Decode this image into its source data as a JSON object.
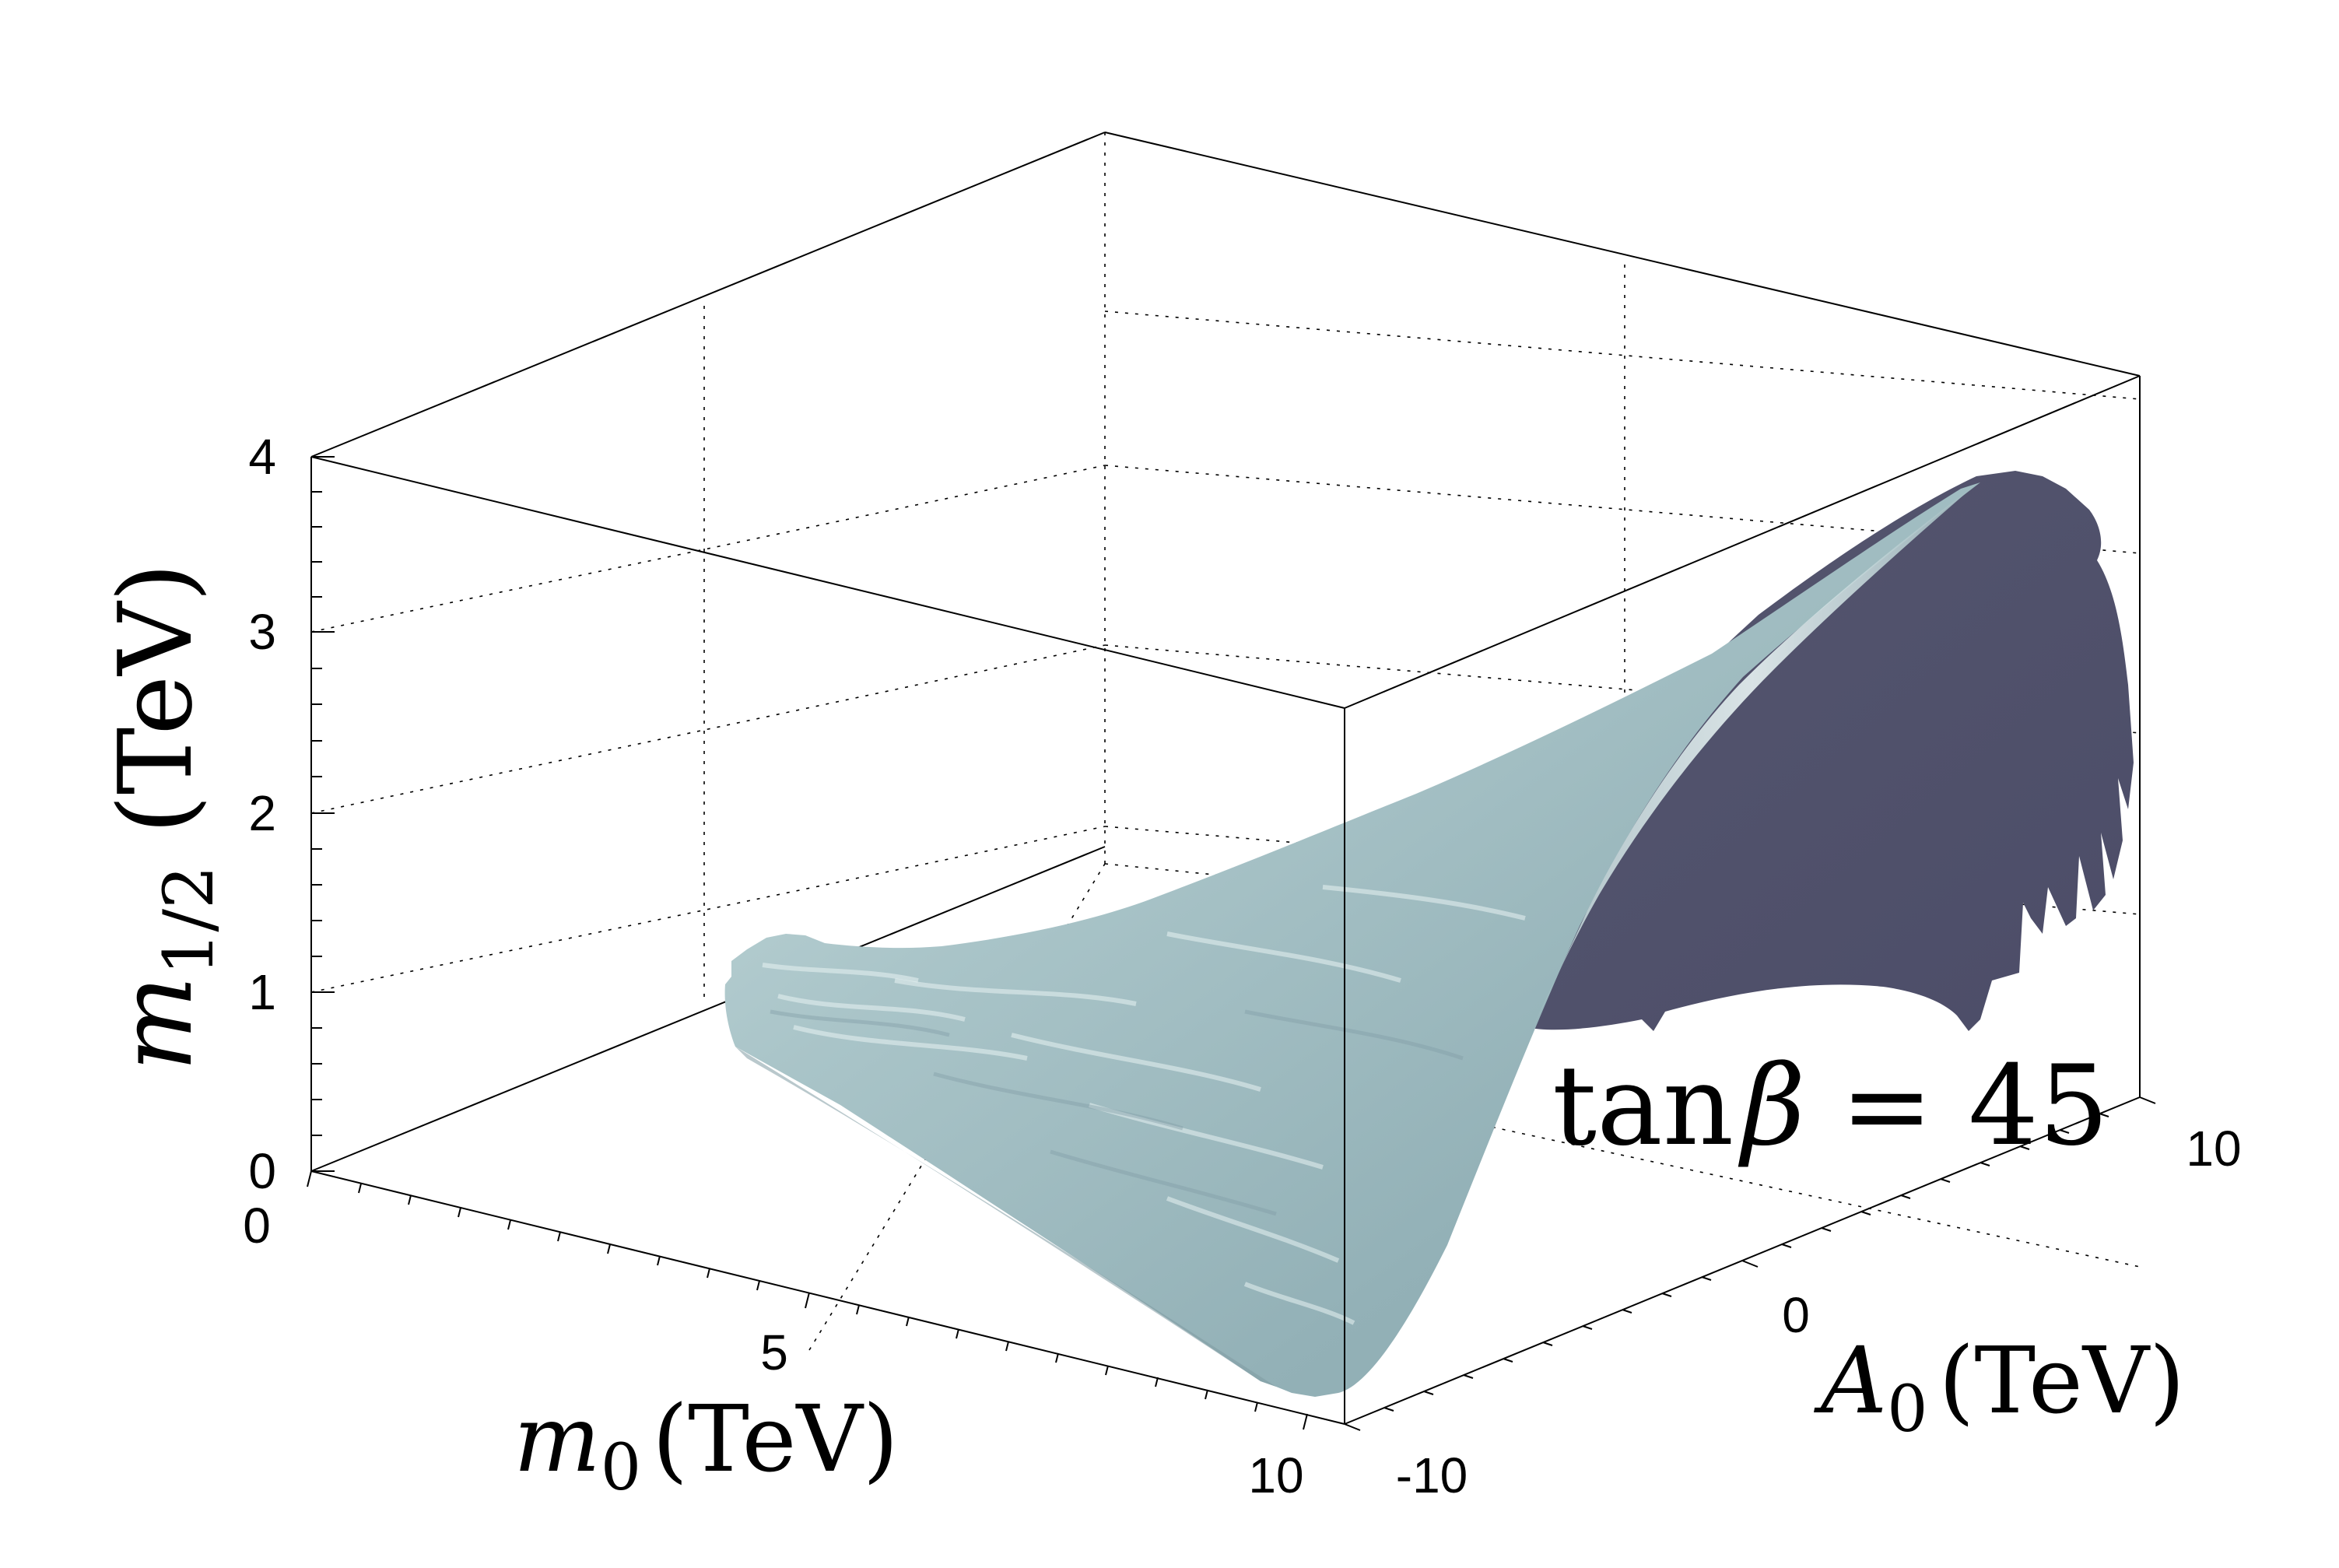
{
  "chart_data": {
    "type": "3d-surface",
    "x_axis": {
      "symbol": "m",
      "subscript": "0",
      "unit": "(TeV)",
      "ticks": [
        "0",
        "5",
        "10"
      ],
      "range": [
        0,
        10
      ]
    },
    "y_axis": {
      "symbol": "A",
      "subscript": "0",
      "unit": "(TeV)",
      "ticks": [
        "-10",
        "0",
        "10"
      ],
      "range": [
        -10,
        10
      ]
    },
    "z_axis": {
      "symbol": "m",
      "subscript": "1/2",
      "unit": "(TeV)",
      "ticks": [
        "0",
        "1",
        "2",
        "3",
        "4"
      ],
      "range": [
        0,
        4
      ]
    },
    "annotation": {
      "prefix": "tan",
      "symbol": "β",
      "rest": " = 45"
    },
    "grid": true,
    "surface_colors": {
      "light": "#a9c4c8",
      "highlight": "#e6f2f2",
      "dark": "#4f506c"
    },
    "surface_samples": [
      {
        "m0": 2.5,
        "A0": -3,
        "m_half": 1.0
      },
      {
        "m0": 9.5,
        "A0": -10,
        "m_half": 0.6
      },
      {
        "m0": 10,
        "A0": 0,
        "m_half": 2.6
      },
      {
        "m0": 10,
        "A0": 9,
        "m_half": 3.7
      }
    ]
  }
}
